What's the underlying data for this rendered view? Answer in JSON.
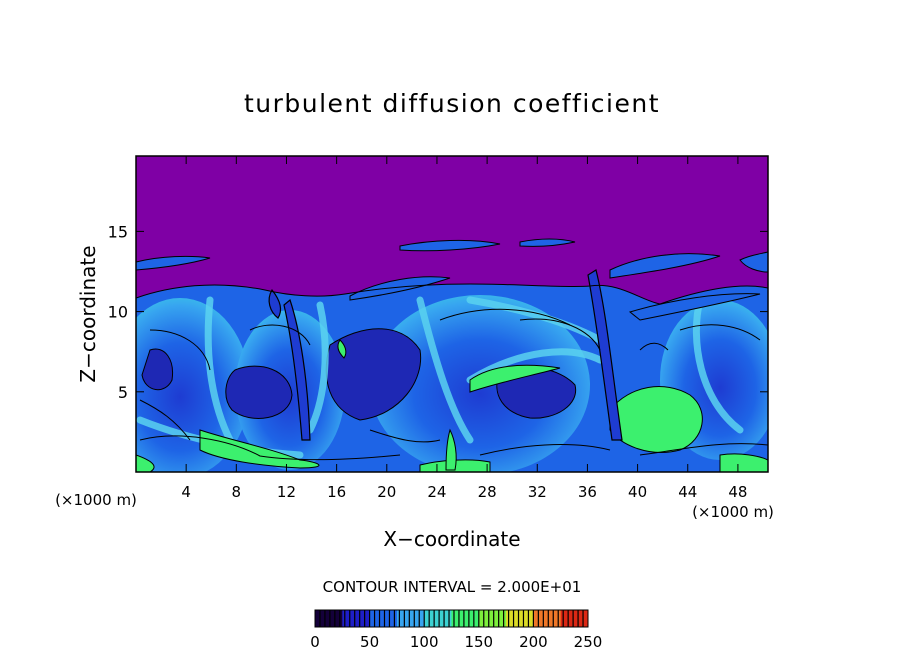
{
  "chart_data": {
    "type": "heatmap",
    "title": "turbulent diffusion coefficient",
    "xlabel": "X−coordinate",
    "ylabel": "Z−coordinate",
    "x_unit_left": "(×1000 m)",
    "x_unit_right": "(×1000 m)",
    "xlim": [
      0,
      50.4
    ],
    "ylim": [
      0,
      19.7
    ],
    "x_ticks": [
      4,
      8,
      12,
      16,
      20,
      24,
      28,
      32,
      36,
      40,
      44,
      48
    ],
    "y_ticks": [
      5,
      10,
      15
    ],
    "contour_interval_label": "CONTOUR INTERVAL = 2.000E+01",
    "contour_interval": 20,
    "background_level_color": "#7f00a5",
    "colorbar": {
      "range": [
        0,
        250
      ],
      "ticks": [
        0,
        50,
        100,
        150,
        200,
        250
      ],
      "colors": [
        "#14003a",
        "#1e1ec8",
        "#1e64e6",
        "#37a5f0",
        "#3cd2d2",
        "#3cf06e",
        "#7df03c",
        "#dcdc28",
        "#f07828",
        "#dc2814"
      ]
    },
    "note_regions": {
      "upper_layer": "uniform low value above ~13 km",
      "convective_cells": [
        {
          "x": [
            0,
            12
          ],
          "z": [
            0,
            11
          ]
        },
        {
          "x": [
            20,
            36
          ],
          "z": [
            0,
            11
          ]
        },
        {
          "x": [
            38,
            50.4
          ],
          "z": [
            0,
            11
          ]
        }
      ]
    }
  }
}
